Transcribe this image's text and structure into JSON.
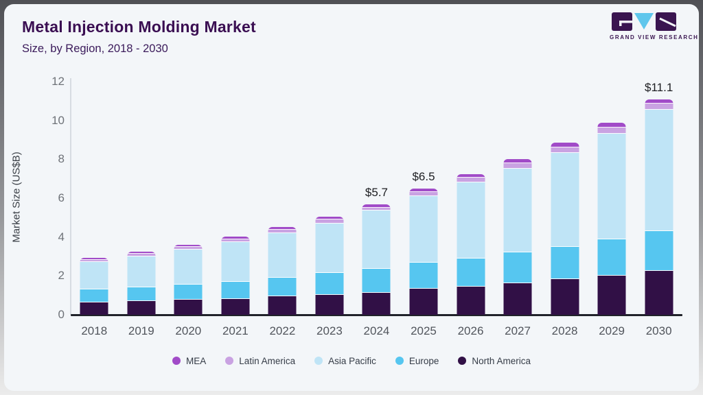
{
  "header": {
    "title": "Metal Injection Molding Market",
    "subtitle": "Size, by Region, 2018 - 2030",
    "brand": "GRAND VIEW RESEARCH"
  },
  "chart_data": {
    "type": "bar",
    "stacked": true,
    "title": "Metal Injection Molding Market Size, by Region, 2018 - 2030",
    "xlabel": "",
    "ylabel": "Market Size (US$B)",
    "ylim": [
      0,
      12
    ],
    "yticks": [
      0,
      2,
      4,
      6,
      8,
      10,
      12
    ],
    "grid": false,
    "legend_position": "bottom",
    "categories": [
      "2018",
      "2019",
      "2020",
      "2021",
      "2022",
      "2023",
      "2024",
      "2025",
      "2026",
      "2027",
      "2028",
      "2029",
      "2030"
    ],
    "series": [
      {
        "name": "North America",
        "color": "#311046",
        "values": [
          0.65,
          0.71,
          0.76,
          0.82,
          0.95,
          1.04,
          1.13,
          1.35,
          1.45,
          1.62,
          1.82,
          2.0,
          2.25
        ]
      },
      {
        "name": "Europe",
        "color": "#56C6F0",
        "values": [
          0.67,
          0.69,
          0.78,
          0.88,
          0.94,
          1.1,
          1.23,
          1.32,
          1.46,
          1.59,
          1.68,
          1.88,
          2.06
        ]
      },
      {
        "name": "Asia Pacific",
        "color": "#BFE4F6",
        "values": [
          1.4,
          1.6,
          1.83,
          2.05,
          2.31,
          2.57,
          3.0,
          3.45,
          3.92,
          4.32,
          4.83,
          5.45,
          6.26
        ]
      },
      {
        "name": "Latin America",
        "color": "#C9A2E2",
        "values": [
          0.12,
          0.13,
          0.12,
          0.14,
          0.17,
          0.18,
          0.16,
          0.19,
          0.22,
          0.26,
          0.28,
          0.3,
          0.3
        ]
      },
      {
        "name": "MEA",
        "color": "#A14BC8",
        "values": [
          0.1,
          0.11,
          0.11,
          0.13,
          0.14,
          0.15,
          0.18,
          0.19,
          0.2,
          0.21,
          0.24,
          0.27,
          0.23
        ]
      }
    ],
    "annotations": [
      {
        "category": "2024",
        "label": "$5.7"
      },
      {
        "category": "2025",
        "label": "$6.5"
      },
      {
        "category": "2030",
        "label": "$11.1"
      }
    ]
  },
  "legend": {
    "items": [
      "MEA",
      "Latin America",
      "Asia Pacific",
      "Europe",
      "North America"
    ]
  },
  "colors": {
    "card_bg": "#F3F6F9",
    "frame_top": "#4F5055",
    "frame_bottom": "#ECECEC",
    "title_text": "#3A0E52",
    "subtitle_text": "#3A1A5A",
    "axis_line": "#20222A",
    "tick_text": "#6E7278",
    "logo_dark": "#3A1550",
    "logo_blue": "#5FC6EC"
  }
}
